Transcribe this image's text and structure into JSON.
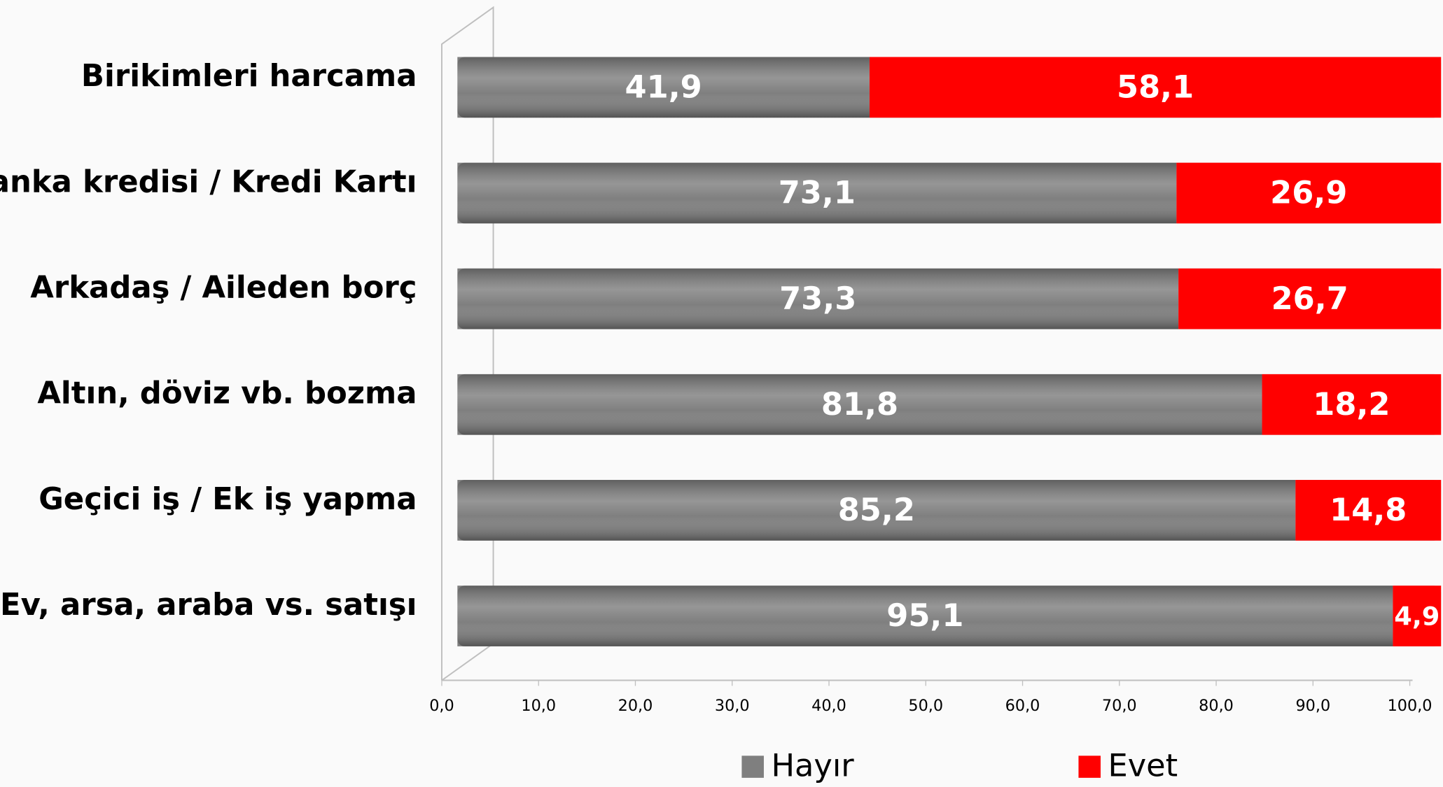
{
  "chart_data": {
    "type": "bar",
    "orientation": "horizontal",
    "stacked": true,
    "categories": [
      "Birikimleri harcama",
      "Banka kredisi / Kredi Kartı",
      "Arkadaş / Aileden borç",
      "Altın, döviz vb. bozma",
      "Geçici iş / Ek iş yapma",
      "Ev, arsa, araba vs. satışı"
    ],
    "series": [
      {
        "name": "Hayır",
        "color": "#7f7f7f",
        "values": [
          41.9,
          73.1,
          73.3,
          81.8,
          85.2,
          95.1
        ],
        "value_labels": [
          "41,9",
          "73,1",
          "73,3",
          "81,8",
          "85,2",
          "95,1"
        ]
      },
      {
        "name": "Evet",
        "color": "#ff0000",
        "values": [
          58.1,
          26.9,
          26.7,
          18.2,
          14.8,
          4.9
        ],
        "value_labels": [
          "58,1",
          "26,9",
          "26,7",
          "18,2",
          "14,8",
          "4,9"
        ]
      }
    ],
    "xlim": [
      0,
      100
    ],
    "xticks": [
      {
        "value": 0,
        "label": "0,0"
      },
      {
        "value": 10,
        "label": "10,0"
      },
      {
        "value": 20,
        "label": "20,0"
      },
      {
        "value": 30,
        "label": "30,0"
      },
      {
        "value": 40,
        "label": "40,0"
      },
      {
        "value": 50,
        "label": "50,0"
      },
      {
        "value": 60,
        "label": "60,0"
      },
      {
        "value": 70,
        "label": "70,0"
      },
      {
        "value": 80,
        "label": "80,0"
      },
      {
        "value": 90,
        "label": "90,0"
      },
      {
        "value": 100,
        "label": "100,0"
      }
    ],
    "legend": "bottom"
  }
}
